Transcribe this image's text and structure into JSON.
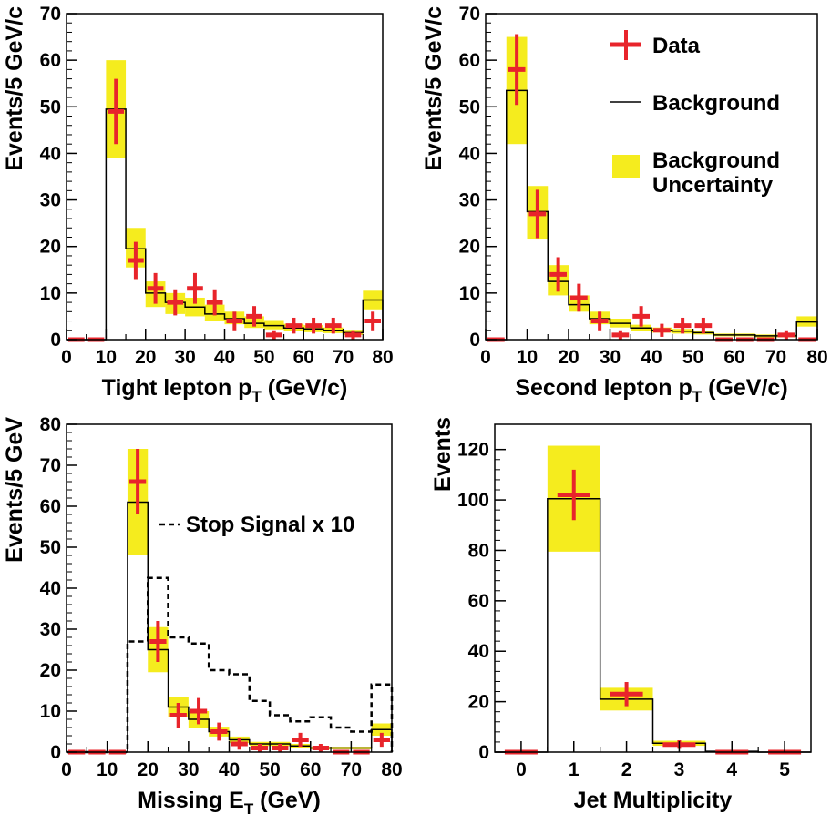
{
  "colors": {
    "data": "#e8242b",
    "band": "#f5ec1e",
    "background_line": "#000000",
    "axis": "#000000"
  },
  "legend": {
    "data": "Data",
    "background": "Background",
    "uncertainty_line1": "Background",
    "uncertainty_line2": "Uncertainty"
  },
  "chart_data": [
    {
      "type": "bar",
      "ylabel": "Events/5 GeV/c",
      "xlabel": "Tight lepton p",
      "xlabel_sub": "T",
      "xlabel_tail": " (GeV/c)",
      "xlim": [
        0,
        80
      ],
      "ylim": [
        0,
        70
      ],
      "xticks": [
        0,
        10,
        20,
        30,
        40,
        50,
        60,
        70,
        80
      ],
      "yticks": [
        0,
        10,
        20,
        30,
        40,
        50,
        60,
        70
      ],
      "bin_edges": [
        0,
        5,
        10,
        15,
        20,
        25,
        30,
        35,
        40,
        45,
        50,
        55,
        60,
        65,
        70,
        75,
        80
      ],
      "background": [
        0,
        0,
        49.5,
        19.5,
        10,
        8,
        7,
        5.5,
        4.5,
        3.5,
        3,
        2.5,
        2.3,
        2,
        1.5,
        8.5
      ],
      "band_low": [
        0,
        0,
        39,
        15.5,
        7,
        5.5,
        5,
        4,
        3.3,
        2.5,
        2.2,
        1.8,
        1.6,
        1.4,
        1,
        6.5
      ],
      "band_high": [
        0,
        0,
        60,
        24,
        12.5,
        10,
        9,
        7.5,
        6,
        5,
        4.2,
        3.4,
        3.1,
        2.6,
        2.1,
        10.5
      ],
      "data": [
        0,
        0,
        49,
        17,
        11,
        8,
        11,
        8,
        4,
        5,
        1,
        3,
        3,
        3,
        1,
        4
      ],
      "data_err": [
        0,
        0,
        7,
        4,
        3.3,
        2.8,
        3.3,
        2.8,
        2,
        2.2,
        1,
        1.7,
        1.7,
        1.7,
        1,
        2
      ]
    },
    {
      "type": "bar",
      "ylabel": "Events/5 GeV/c",
      "xlabel": "Second lepton p",
      "xlabel_sub": "T",
      "xlabel_tail": " (GeV/c)",
      "xlim": [
        0,
        80
      ],
      "ylim": [
        0,
        70
      ],
      "xticks": [
        0,
        10,
        20,
        30,
        40,
        50,
        60,
        70,
        80
      ],
      "yticks": [
        0,
        10,
        20,
        30,
        40,
        50,
        60,
        70
      ],
      "bin_edges": [
        0,
        5,
        10,
        15,
        20,
        25,
        30,
        35,
        40,
        45,
        50,
        55,
        60,
        65,
        70,
        75,
        80
      ],
      "background": [
        0,
        53.5,
        27.5,
        12.5,
        7.5,
        4.5,
        3.5,
        2.5,
        2,
        1.8,
        1.5,
        1,
        1,
        0.8,
        0.8,
        3.8
      ],
      "band_low": [
        0,
        42,
        21.5,
        9.5,
        6,
        3.3,
        2.6,
        1.9,
        1.5,
        1.3,
        1.1,
        0.7,
        0.7,
        0.5,
        0.5,
        2.8
      ],
      "band_high": [
        0,
        65,
        33,
        16,
        9.5,
        6,
        4.5,
        3.2,
        2.6,
        2.3,
        1.9,
        1.3,
        1.3,
        1.1,
        1.1,
        5
      ],
      "data": [
        0,
        58,
        27,
        14,
        9,
        4,
        1,
        5,
        2,
        3,
        3,
        0,
        0,
        0,
        1,
        0
      ],
      "data_err": [
        0,
        7.6,
        5.2,
        3.7,
        3,
        2,
        1,
        2.2,
        1.4,
        1.7,
        1.7,
        0,
        0,
        0,
        1,
        0
      ]
    },
    {
      "type": "bar",
      "ylabel": "Events/5 GeV",
      "xlabel": "Missing E",
      "xlabel_sub": "T",
      "xlabel_tail": " (GeV)",
      "signal_label": "Stop Signal x 10",
      "xlim": [
        0,
        80
      ],
      "ylim": [
        0,
        80
      ],
      "xticks": [
        0,
        10,
        20,
        30,
        40,
        50,
        60,
        70,
        80
      ],
      "yticks": [
        0,
        10,
        20,
        30,
        40,
        50,
        60,
        70,
        80
      ],
      "bin_edges": [
        0,
        5,
        10,
        15,
        20,
        25,
        30,
        35,
        40,
        45,
        50,
        55,
        60,
        65,
        70,
        75,
        80
      ],
      "background": [
        0,
        0,
        0,
        61,
        25,
        11,
        8,
        5,
        3,
        2,
        2,
        1.5,
        1,
        1,
        1,
        5.5
      ],
      "band_low": [
        0,
        0,
        0,
        48,
        19.5,
        8.5,
        6,
        3.8,
        2.2,
        1.5,
        1.5,
        1,
        0.7,
        0.7,
        0.7,
        4
      ],
      "band_high": [
        0,
        0,
        0,
        74,
        30.5,
        13.5,
        10,
        6.2,
        3.8,
        2.5,
        2.5,
        2,
        1.3,
        1.3,
        1.3,
        7
      ],
      "data": [
        0,
        0,
        0,
        66,
        27,
        9,
        10,
        5,
        2,
        1,
        1,
        3,
        1,
        0,
        0,
        3
      ],
      "data_err": [
        0,
        0,
        0,
        8,
        5,
        3,
        3.2,
        2.2,
        1.4,
        1,
        1,
        1.7,
        1,
        0,
        0,
        1.7
      ],
      "signal": [
        0,
        0,
        0,
        27,
        42.5,
        28,
        26.5,
        20,
        19,
        12.5,
        9,
        7.5,
        8.5,
        6,
        5,
        16.5
      ]
    },
    {
      "type": "bar",
      "ylabel": "Events",
      "xlabel": "Jet Multiplicity",
      "xlim": [
        -0.5,
        5.5
      ],
      "ylim": [
        0,
        130
      ],
      "xticks": [
        0,
        1,
        2,
        3,
        4,
        5
      ],
      "yticks": [
        0,
        20,
        40,
        60,
        80,
        100,
        120
      ],
      "bin_edges": [
        -0.5,
        0.5,
        1.5,
        2.5,
        3.5,
        4.5,
        5.5
      ],
      "background": [
        0,
        100.5,
        21,
        3.5,
        0.3,
        0
      ],
      "band_low": [
        0,
        79.5,
        16.5,
        2.5,
        0.2,
        0
      ],
      "band_high": [
        0,
        121.5,
        25.5,
        4.5,
        0.4,
        0
      ],
      "data": [
        0,
        102,
        23,
        3,
        0,
        0
      ],
      "data_err": [
        0,
        10,
        4.8,
        1.7,
        0,
        0
      ]
    }
  ]
}
